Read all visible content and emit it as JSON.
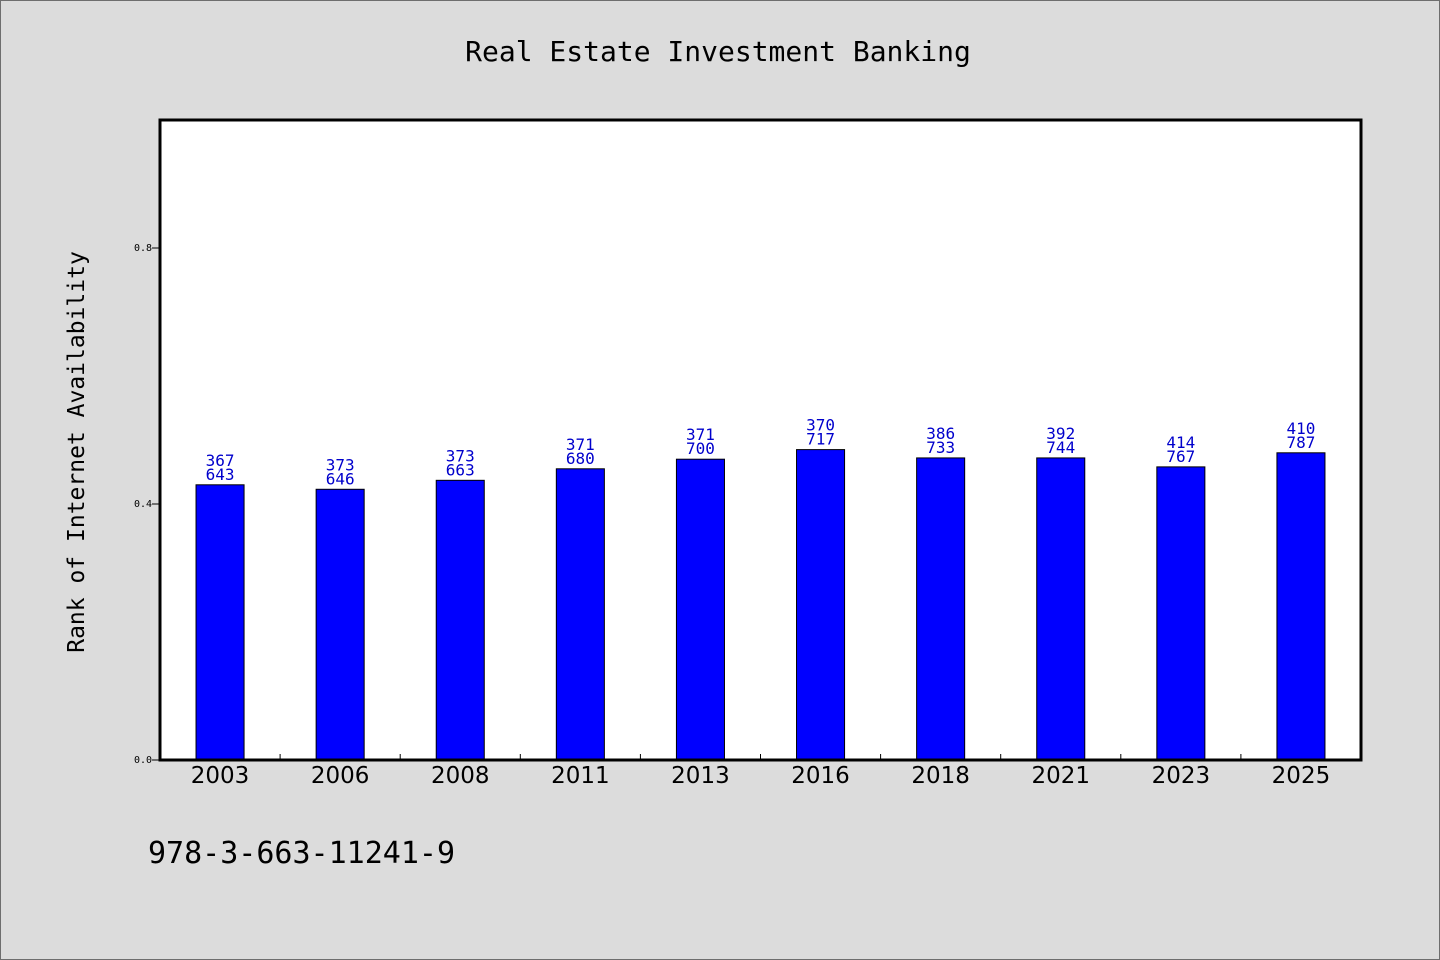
{
  "chart_data": {
    "type": "bar",
    "title": "Real Estate Investment Banking",
    "xlabel": "",
    "ylabel": "Rank of Internet Availability",
    "categories": [
      "2003",
      "2006",
      "2008",
      "2011",
      "2013",
      "2016",
      "2018",
      "2021",
      "2023",
      "2025"
    ],
    "series": [
      {
        "values": [
          0.43,
          0.423,
          0.437,
          0.455,
          0.47,
          0.485,
          0.472,
          0.472,
          0.458,
          0.48
        ],
        "label_top": [
          "367",
          "373",
          "373",
          "371",
          "371",
          "370",
          "386",
          "392",
          "414",
          "410"
        ],
        "label_bottom": [
          "643",
          "646",
          "663",
          "680",
          "700",
          "717",
          "733",
          "744",
          "767",
          "787"
        ],
        "color": "#0000ff"
      }
    ],
    "ylim": [
      0,
      1.0
    ],
    "yticks": [
      "0.0",
      "0.4",
      "0.8"
    ],
    "ytick_values": [
      0.0,
      0.4,
      0.8
    ],
    "grid": false,
    "legend": "none",
    "label_color": "#0000cc"
  },
  "footer": {
    "isbn": "978-3-663-11241-9"
  }
}
